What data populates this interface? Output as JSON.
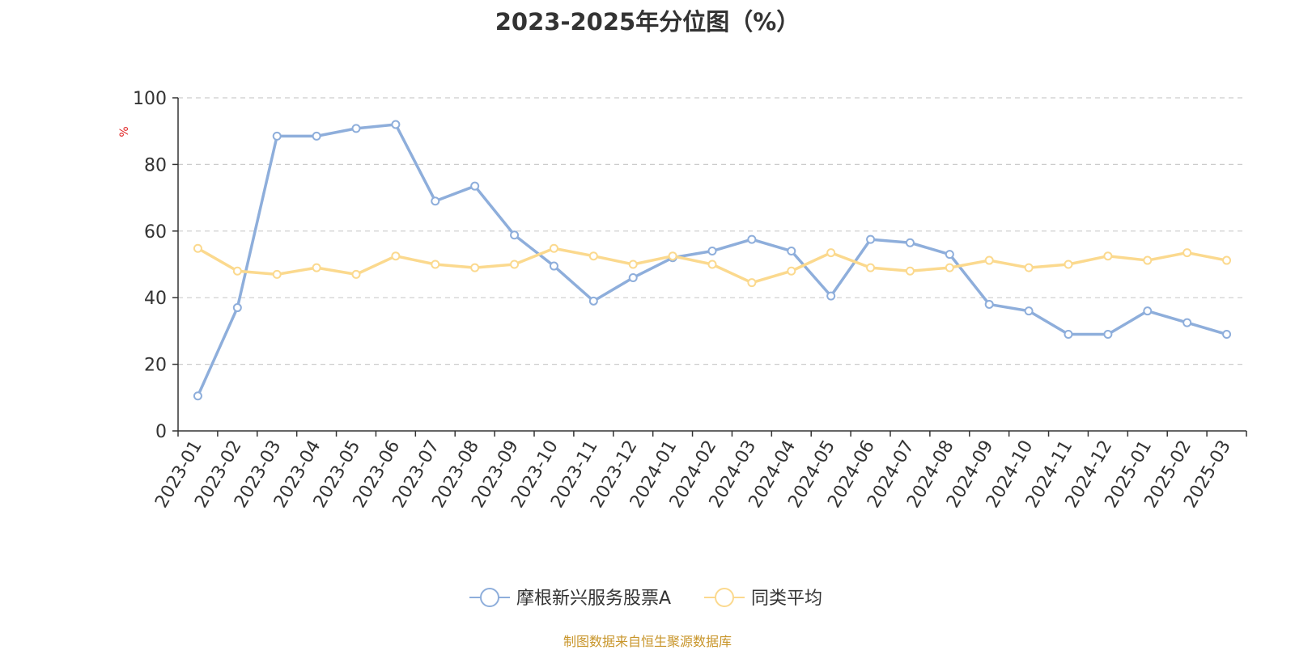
{
  "chart_data": {
    "type": "line",
    "title": "2023-2025年分位图（%）",
    "ylabel": "%",
    "ylim": [
      0,
      100
    ],
    "yticks": [
      0,
      20,
      40,
      60,
      80,
      100
    ],
    "grid": true,
    "legend_position": "bottom",
    "categories": [
      "2023-01",
      "2023-02",
      "2023-03",
      "2023-04",
      "2023-05",
      "2023-06",
      "2023-07",
      "2023-08",
      "2023-09",
      "2023-10",
      "2023-11",
      "2023-12",
      "2024-01",
      "2024-02",
      "2024-03",
      "2024-04",
      "2024-05",
      "2024-06",
      "2024-07",
      "2024-08",
      "2024-09",
      "2024-10",
      "2024-11",
      "2024-12",
      "2025-01",
      "2025-02",
      "2025-03"
    ],
    "series": [
      {
        "name": "摩根新兴服务股票A",
        "color": "#8eaedb",
        "values": [
          10.5,
          37,
          88.5,
          88.5,
          90.8,
          92,
          69,
          73.5,
          58.8,
          49.5,
          39,
          46,
          52,
          54,
          57.5,
          54,
          40.5,
          57.5,
          56.5,
          53,
          38,
          36,
          29,
          29,
          36,
          32.5,
          29
        ]
      },
      {
        "name": "同类平均",
        "color": "#fbd98e",
        "values": [
          54.8,
          48,
          47,
          49,
          47,
          52.5,
          50,
          49,
          50,
          54.8,
          52.5,
          50,
          52.5,
          50,
          44.5,
          48,
          53.5,
          49,
          48,
          49,
          51.2,
          49,
          50,
          52.5,
          51.2,
          53.5,
          51.2
        ]
      }
    ]
  },
  "source_note": "制图数据来自恒生聚源数据库"
}
